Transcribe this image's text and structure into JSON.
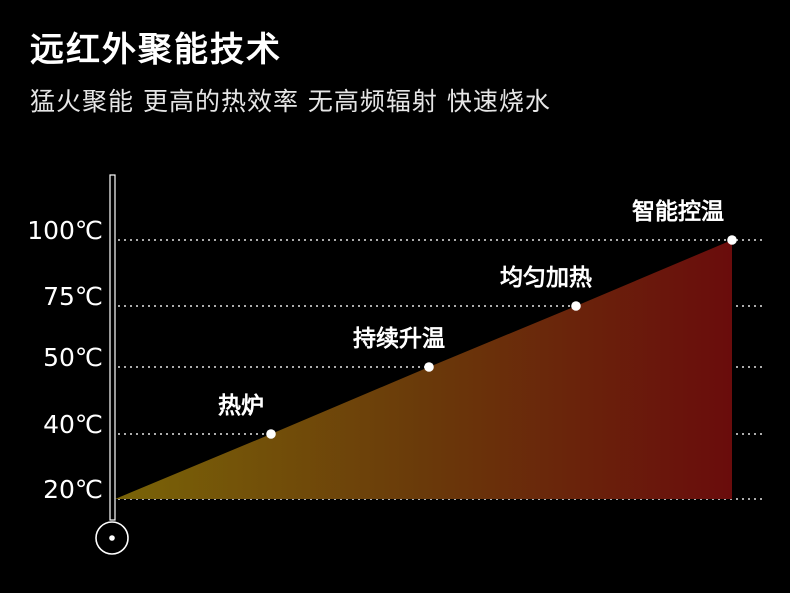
{
  "header": {
    "title": "远红外聚能技术",
    "subtitle": "猛火聚能 更高的热效率 无高频辐射 快速烧水"
  },
  "colors": {
    "fill_start": "#7a6408",
    "fill_mid": "#6a3a0a",
    "fill_end": "#6a0c0c",
    "grid": "#ffffff"
  },
  "chart_data": {
    "type": "area",
    "title": "",
    "xlabel": "",
    "ylabel": "",
    "grid": true,
    "y_ticks": [
      {
        "label": "100℃",
        "value": 100
      },
      {
        "label": "75℃",
        "value": 75
      },
      {
        "label": "50℃",
        "value": 50
      },
      {
        "label": "40℃",
        "value": 40
      },
      {
        "label": "20℃",
        "value": 20
      }
    ],
    "points": [
      {
        "label": "",
        "stage": 0,
        "value": 20
      },
      {
        "label": "热炉",
        "stage": 1,
        "value": 40
      },
      {
        "label": "持续升温",
        "stage": 2,
        "value": 50
      },
      {
        "label": "均匀加热",
        "stage": 3,
        "value": 75
      },
      {
        "label": "智能控温",
        "stage": 4,
        "value": 100
      }
    ]
  }
}
